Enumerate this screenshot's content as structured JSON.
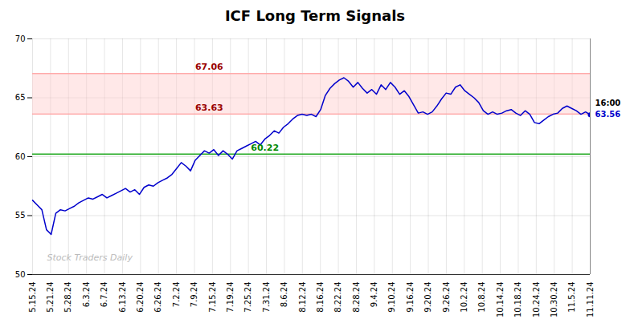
{
  "chart_data": {
    "type": "line",
    "title": "ICF Long Term Signals",
    "values": [
      56.3,
      55.9,
      55.5,
      53.8,
      53.4,
      55.2,
      55.5,
      55.4,
      55.6,
      55.8,
      56.1,
      56.3,
      56.5,
      56.4,
      56.6,
      56.8,
      56.5,
      56.7,
      56.9,
      57.1,
      57.3,
      57.0,
      57.2,
      56.8,
      57.4,
      57.6,
      57.5,
      57.8,
      58.0,
      58.2,
      58.5,
      59.0,
      59.5,
      59.2,
      58.8,
      59.7,
      60.1,
      60.5,
      60.3,
      60.6,
      60.1,
      60.5,
      60.2,
      59.8,
      60.5,
      60.7,
      60.9,
      61.1,
      61.3,
      61.0,
      61.5,
      61.8,
      62.2,
      62.0,
      62.5,
      62.8,
      63.2,
      63.5,
      63.6,
      63.5,
      63.6,
      63.4,
      64.0,
      65.2,
      65.8,
      66.2,
      66.5,
      66.7,
      66.4,
      65.9,
      66.3,
      65.8,
      65.4,
      65.7,
      65.3,
      66.1,
      65.7,
      66.3,
      65.9,
      65.3,
      65.6,
      65.1,
      64.4,
      63.7,
      63.8,
      63.6,
      63.8,
      64.3,
      64.9,
      65.4,
      65.3,
      65.9,
      66.1,
      65.6,
      65.3,
      65.0,
      64.6,
      63.9,
      63.6,
      63.8,
      63.6,
      63.7,
      63.9,
      64.0,
      63.7,
      63.5,
      63.9,
      63.6,
      62.9,
      62.8,
      63.1,
      63.4,
      63.6,
      63.7,
      64.1,
      64.3,
      64.1,
      63.9,
      63.6,
      63.8,
      63.56
    ],
    "color": "#0000cc",
    "xlim": [
      0,
      120
    ],
    "xticks": [
      {
        "value": 0,
        "label": "5.15.24"
      },
      {
        "value": 3.8709677419,
        "label": "5.21.24"
      },
      {
        "value": 7.7419354839,
        "label": "5.28.24"
      },
      {
        "value": 11.6129032258,
        "label": "6.3.24"
      },
      {
        "value": 15.4838709677,
        "label": "6.7.24"
      },
      {
        "value": 19.3548387097,
        "label": "6.13.24"
      },
      {
        "value": 23.2258064516,
        "label": "6.20.24"
      },
      {
        "value": 27.0967741935,
        "label": "6.26.24"
      },
      {
        "value": 30.9677419355,
        "label": "7.2.24"
      },
      {
        "value": 34.8387096774,
        "label": "7.9.24"
      },
      {
        "value": 38.7096774194,
        "label": "7.15.24"
      },
      {
        "value": 42.5806451613,
        "label": "7.19.24"
      },
      {
        "value": 46.4516129032,
        "label": "7.25.24"
      },
      {
        "value": 50.3225806452,
        "label": "7.31.24"
      },
      {
        "value": 54.1935483871,
        "label": "8.6.24"
      },
      {
        "value": 58.064516129,
        "label": "8.12.24"
      },
      {
        "value": 61.935483871,
        "label": "8.16.24"
      },
      {
        "value": 65.8064516129,
        "label": "8.22.24"
      },
      {
        "value": 69.6774193548,
        "label": "8.28.24"
      },
      {
        "value": 73.5483870968,
        "label": "9.4.24"
      },
      {
        "value": 77.4193548387,
        "label": "9.10.24"
      },
      {
        "value": 81.2903225806,
        "label": "9.16.24"
      },
      {
        "value": 85.1612903226,
        "label": "9.20.24"
      },
      {
        "value": 89.0322580645,
        "label": "9.26.24"
      },
      {
        "value": 92.9032258065,
        "label": "10.2.24"
      },
      {
        "value": 96.7741935484,
        "label": "10.8.24"
      },
      {
        "value": 100.6451612903,
        "label": "10.14.24"
      },
      {
        "value": 104.5161290323,
        "label": "10.18.24"
      },
      {
        "value": 108.3870967742,
        "label": "10.24.24"
      },
      {
        "value": 112.2580645161,
        "label": "10.30.24"
      },
      {
        "value": 116.1290322581,
        "label": "11.5.24"
      },
      {
        "value": 120,
        "label": "11.11.24"
      }
    ],
    "ylim": [
      50,
      70
    ],
    "yticks": [
      50,
      55,
      60,
      65,
      70
    ],
    "grid": true,
    "band": {
      "from": 63.63,
      "to": 67.06,
      "color": "#ffcccc"
    },
    "hlines": [
      {
        "value": 67.06,
        "color": "#ffaaaa",
        "label_color": "#990000"
      },
      {
        "value": 63.63,
        "color": "#ffaaaa",
        "label_color": "#990000"
      },
      {
        "value": 60.22,
        "color": "#22aa22",
        "label_color": "#008800"
      }
    ],
    "last_point": {
      "value": 63.56,
      "label": "16:00",
      "line_color": "#888888"
    },
    "watermark": "Stock Traders Daily"
  }
}
